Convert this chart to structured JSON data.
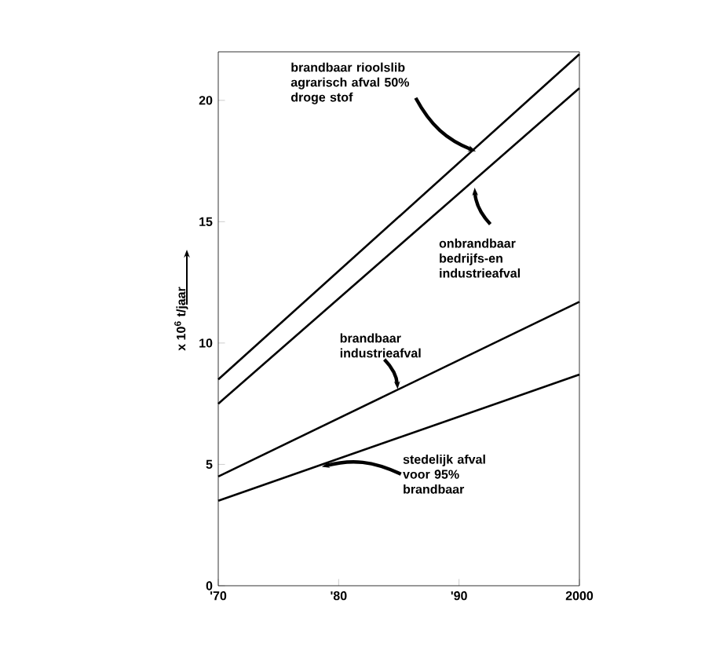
{
  "chart_data": {
    "type": "line",
    "ylabel": "x 10$^{6}$ t/jaar",
    "series": [
      {
        "color": "#000000",
        "values": [
          8.5,
          21.9
        ]
      },
      {
        "color": "#000000",
        "values": [
          7.5,
          20.5
        ]
      },
      {
        "color": "#000000",
        "values": [
          4.5,
          11.7
        ]
      },
      {
        "color": "#000000",
        "values": [
          3.5,
          8.7
        ]
      }
    ],
    "x": [
      1970,
      2000
    ],
    "xlim": [
      1970,
      2000
    ],
    "ylim": [
      0,
      22
    ],
    "xticks": [
      {
        "value": 1970,
        "label": "'70"
      },
      {
        "value": 1980,
        "label": "'80"
      },
      {
        "value": 1990,
        "label": "'90"
      },
      2000
    ],
    "yticks": [
      0,
      5,
      10,
      15,
      20
    ],
    "marker": "none",
    "line_style": "solid",
    "grid": false,
    "annotations": [
      {
        "text": "brandbaar rioolslib agrarisch afval 50% droge stof",
        "x": 1991.4,
        "y": 17.9
      },
      {
        "text": "onbrandbaar bedrijfs-en industrieafval",
        "x": 1991.3,
        "y": 16.4
      },
      {
        "text": "brandbaar industrieafval",
        "x": 1984.9,
        "y": 8.1
      },
      {
        "text": "stedelijk afval voor 95% brandbaar",
        "x": 1978.6,
        "y": 4.9
      }
    ]
  }
}
